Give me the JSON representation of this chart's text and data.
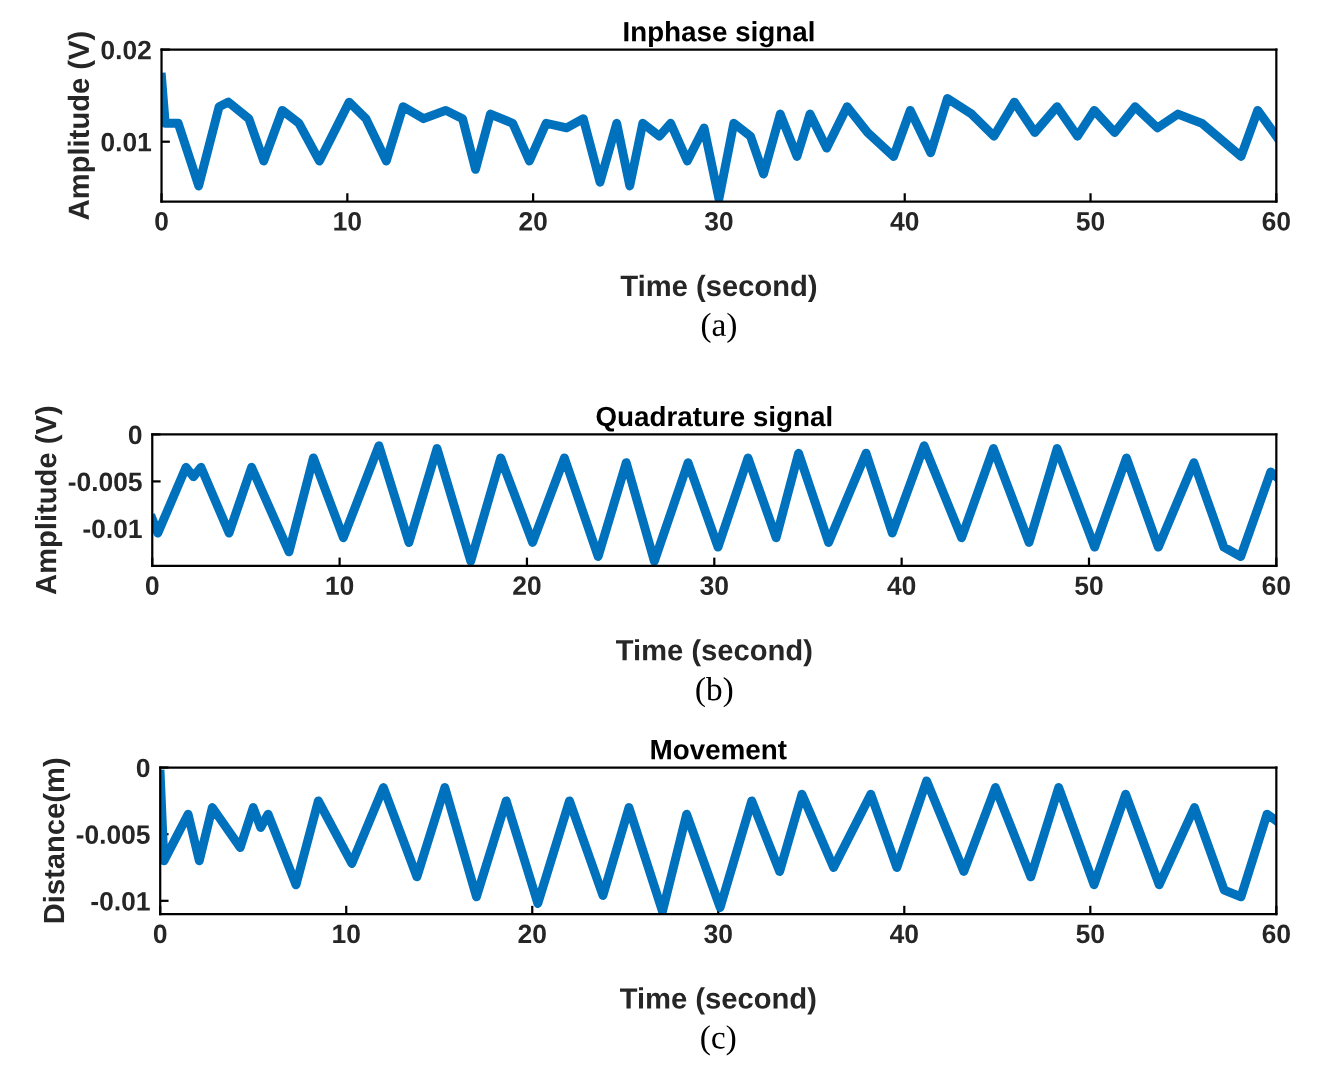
{
  "chart_data": [
    {
      "type": "line",
      "title": "Inphase signal",
      "xlabel": "Time (second)",
      "ylabel": "Amplitude (V)",
      "annotations": [
        "(a)"
      ],
      "xlim": [
        0,
        60
      ],
      "xticks": [
        0,
        10,
        20,
        30,
        40,
        50,
        60
      ],
      "ylim": [
        0.0035,
        0.02
      ],
      "yticks": [
        0.01,
        0.02
      ],
      "grid": false,
      "x": [
        0,
        0.2,
        0.9,
        2,
        3.1,
        3.6,
        4.7,
        5.5,
        6.5,
        7.4,
        8.5,
        10.1,
        11,
        12.1,
        13,
        14.1,
        15.3,
        16.2,
        16.9,
        17.7,
        18.9,
        19.8,
        20.7,
        21.8,
        22.7,
        23.6,
        24.5,
        25.2,
        25.9,
        26.8,
        27.4,
        28.3,
        29.2,
        30,
        30.8,
        31.7,
        32.4,
        33.3,
        34.2,
        34.9,
        35.8,
        36.9,
        38,
        39.4,
        40.3,
        41.4,
        42.3,
        43.6,
        44.8,
        45.9,
        47,
        48.2,
        49.3,
        50.2,
        51.3,
        52.4,
        53.6,
        54.7,
        56,
        58.1,
        59,
        60
      ],
      "series": [
        {
          "color": "#0072bd",
          "values": [
            0.017,
            0.012,
            0.012,
            0.0052,
            0.0138,
            0.0143,
            0.0125,
            0.0079,
            0.0134,
            0.012,
            0.0079,
            0.0143,
            0.0125,
            0.0079,
            0.0138,
            0.0125,
            0.0134,
            0.0125,
            0.007,
            0.013,
            0.012,
            0.0079,
            0.012,
            0.0115,
            0.0125,
            0.0056,
            0.012,
            0.0052,
            0.012,
            0.0106,
            0.012,
            0.0079,
            0.0115,
            0.0038,
            0.012,
            0.0106,
            0.0065,
            0.013,
            0.0084,
            0.013,
            0.0093,
            0.0138,
            0.011,
            0.0084,
            0.0134,
            0.0088,
            0.0147,
            0.013,
            0.0106,
            0.0143,
            0.011,
            0.0138,
            0.0106,
            0.0134,
            0.011,
            0.0138,
            0.0115,
            0.013,
            0.012,
            0.0084,
            0.0134,
            0.0106
          ]
        }
      ]
    },
    {
      "type": "line",
      "title": "Quadrature signal",
      "xlabel": "Time (second)",
      "ylabel": "Amplitude (V)",
      "annotations": [
        "(b)"
      ],
      "xlim": [
        0,
        60
      ],
      "xticks": [
        0,
        10,
        20,
        30,
        40,
        50,
        60
      ],
      "ylim": [
        -0.014,
        0
      ],
      "yticks": [
        -0.01,
        -0.005,
        0
      ],
      "grid": false,
      "x": [
        0,
        0.3,
        1.8,
        2.2,
        2.6,
        4.1,
        5.3,
        7.3,
        8.6,
        10.2,
        12.1,
        13.7,
        15.2,
        17,
        18.6,
        20.3,
        22,
        23.8,
        25.3,
        26.8,
        28.6,
        30.2,
        31.8,
        33.3,
        34.5,
        36.1,
        38.1,
        39.5,
        41.2,
        43.2,
        44.9,
        46.8,
        48.3,
        50.3,
        52,
        53.7,
        55.6,
        57.2,
        58.1,
        59.7,
        60
      ],
      "series": [
        {
          "color": "#0072bd",
          "values": [
            -0.009,
            -0.0105,
            -0.0035,
            -0.0045,
            -0.0035,
            -0.0105,
            -0.0035,
            -0.0125,
            -0.0025,
            -0.011,
            -0.0012,
            -0.0115,
            -0.0015,
            -0.0135,
            -0.0025,
            -0.0115,
            -0.0025,
            -0.013,
            -0.003,
            -0.0135,
            -0.003,
            -0.012,
            -0.0025,
            -0.011,
            -0.002,
            -0.0115,
            -0.002,
            -0.0105,
            -0.0012,
            -0.011,
            -0.0015,
            -0.0115,
            -0.0015,
            -0.012,
            -0.0025,
            -0.012,
            -0.003,
            -0.012,
            -0.013,
            -0.004,
            -0.0045
          ]
        }
      ]
    },
    {
      "type": "line",
      "title": "Movement",
      "xlabel": "Time (second)",
      "ylabel": "Distance(m)",
      "annotations": [
        "(c)"
      ],
      "xlim": [
        0,
        60
      ],
      "xticks": [
        0,
        10,
        20,
        30,
        40,
        50,
        60
      ],
      "ylim": [
        -0.011,
        0
      ],
      "yticks": [
        -0.01,
        -0.005,
        0
      ],
      "grid": false,
      "x": [
        0,
        0.2,
        1.5,
        2.1,
        2.8,
        4.3,
        5,
        5.4,
        5.8,
        7.3,
        8.5,
        10.3,
        12,
        13.8,
        15.3,
        17,
        18.6,
        20.3,
        22,
        23.8,
        25.2,
        27,
        28.3,
        30.1,
        31.8,
        33.3,
        34.5,
        36.2,
        38.2,
        39.6,
        41.2,
        43.2,
        44.9,
        46.8,
        48.3,
        50.2,
        51.9,
        53.7,
        55.6,
        57.2,
        58.1,
        59.5,
        60
      ],
      "series": [
        {
          "color": "#0072bd",
          "values": [
            -0.0005,
            -0.007,
            -0.0035,
            -0.007,
            -0.003,
            -0.006,
            -0.003,
            -0.0045,
            -0.0035,
            -0.0088,
            -0.0025,
            -0.0072,
            -0.0015,
            -0.0082,
            -0.0015,
            -0.0097,
            -0.0025,
            -0.0102,
            -0.0025,
            -0.0096,
            -0.003,
            -0.0108,
            -0.0035,
            -0.0105,
            -0.0025,
            -0.0078,
            -0.002,
            -0.0075,
            -0.002,
            -0.0075,
            -0.001,
            -0.0078,
            -0.0015,
            -0.0082,
            -0.0015,
            -0.0088,
            -0.002,
            -0.0088,
            -0.003,
            -0.0092,
            -0.0097,
            -0.0035,
            -0.004
          ]
        }
      ]
    }
  ]
}
